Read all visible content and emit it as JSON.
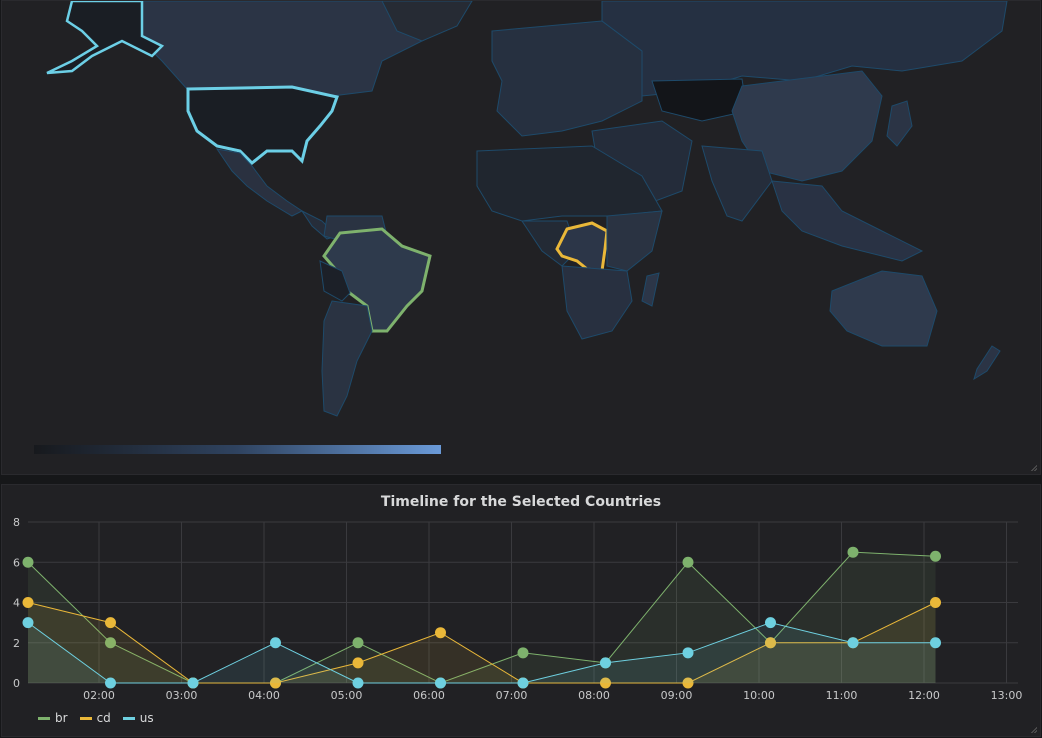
{
  "map_panel": {
    "legend_colors": [
      "#17191d",
      "#2f4360",
      "#6a9ad8"
    ],
    "highlight_colors": {
      "us": "#6ccfe6",
      "br": "#7eb26d",
      "cd": "#eab839"
    }
  },
  "chart_panel": {
    "title": "Timeline for the Selected Countries"
  },
  "chart_data": {
    "type": "line",
    "title": "Timeline for the Selected Countries",
    "x": [
      "01:10",
      "02:10",
      "03:10",
      "04:10",
      "05:10",
      "06:10",
      "07:10",
      "08:10",
      "09:10",
      "10:10",
      "11:10",
      "12:10"
    ],
    "x_ticks": [
      "02:00",
      "03:00",
      "04:00",
      "05:00",
      "06:00",
      "07:00",
      "08:00",
      "09:00",
      "10:00",
      "11:00",
      "12:00",
      "13:00"
    ],
    "y_ticks": [
      "0",
      "2",
      "4",
      "6",
      "8"
    ],
    "ylim": [
      0,
      8
    ],
    "grid": true,
    "legend_position": "bottom-left",
    "series": [
      {
        "name": "br",
        "color": "#7eb26d",
        "values": [
          6,
          2,
          0,
          0,
          2,
          0,
          1.5,
          1,
          6,
          2,
          6.5,
          6.3
        ]
      },
      {
        "name": "cd",
        "color": "#eab839",
        "values": [
          4,
          3,
          0,
          0,
          1,
          2.5,
          0,
          0,
          0,
          2,
          2,
          4
        ]
      },
      {
        "name": "us",
        "color": "#6ed0e0",
        "values": [
          3,
          0,
          0,
          2,
          0,
          0,
          0,
          1,
          1.5,
          3,
          2,
          2
        ]
      }
    ]
  }
}
